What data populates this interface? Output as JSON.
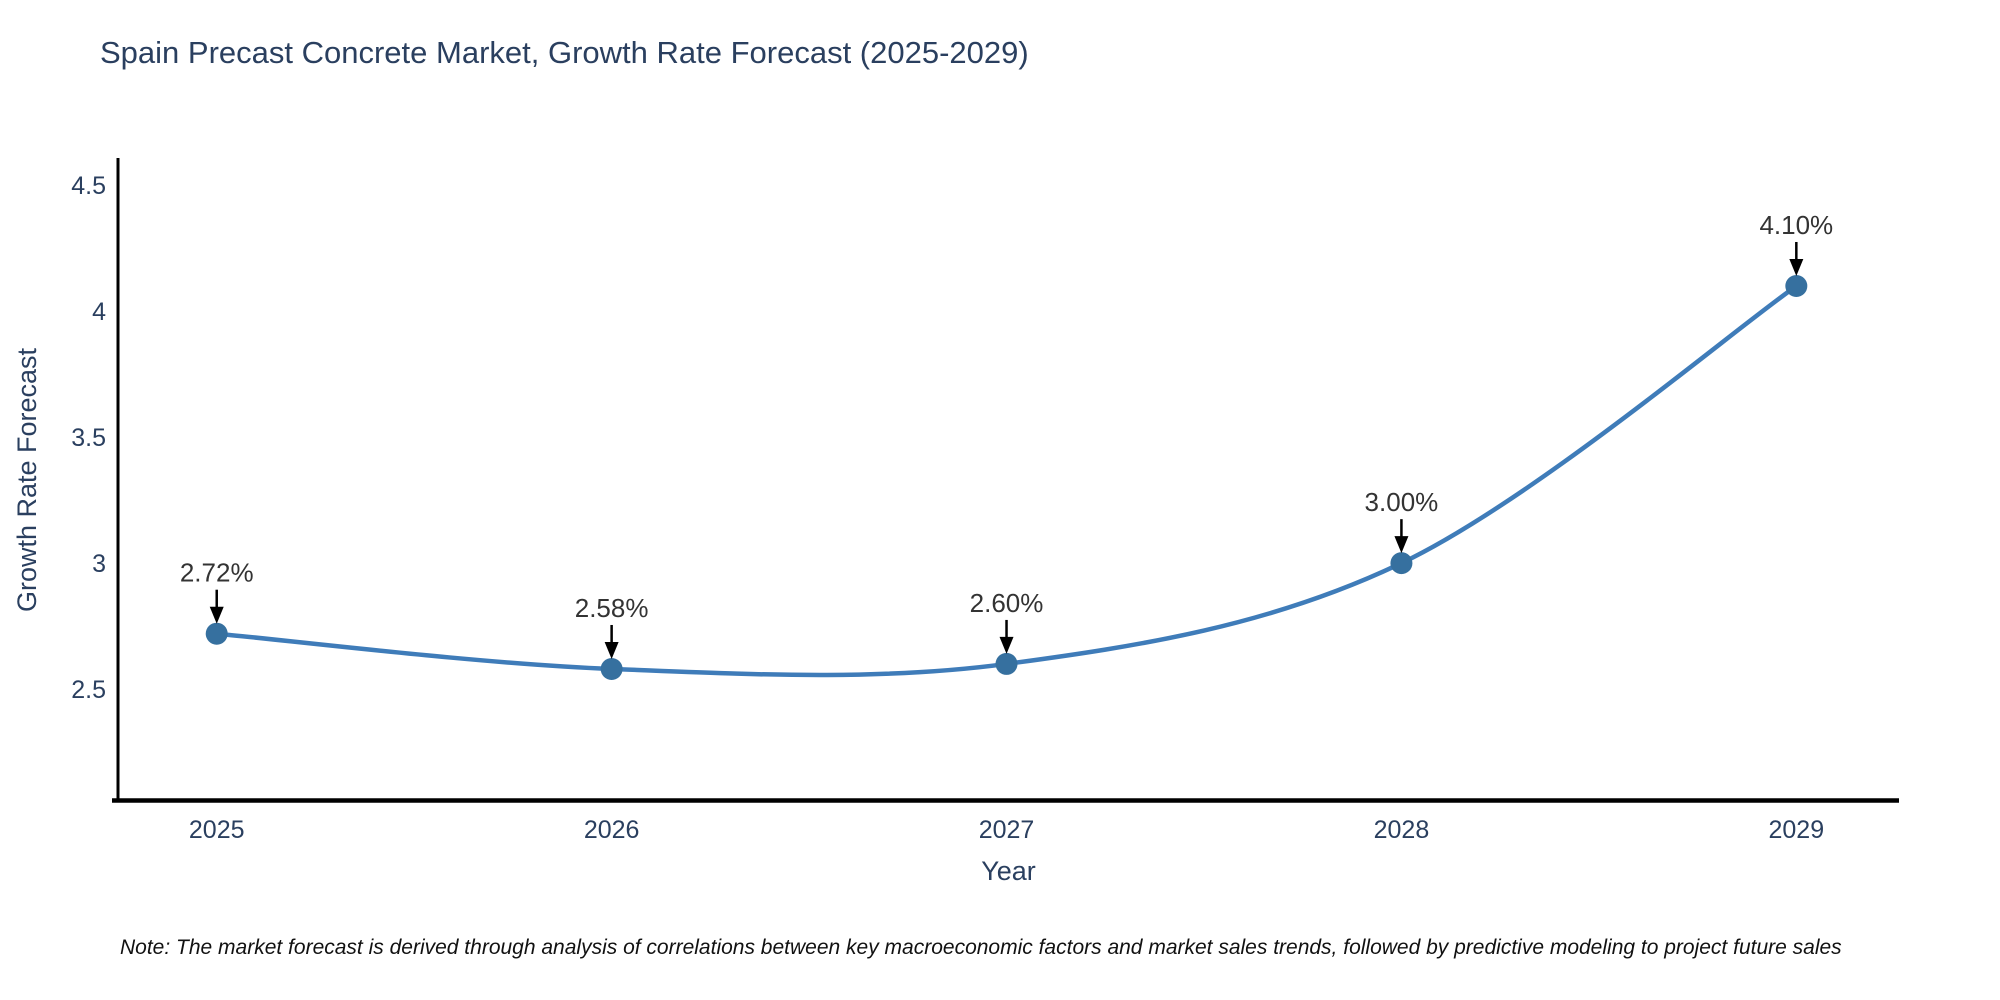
{
  "chart_data": {
    "type": "line",
    "title": "Spain Precast Concrete Market, Growth Rate Forecast (2025-2029)",
    "xlabel": "Year",
    "ylabel": "Growth Rate Forecast",
    "x": [
      2025,
      2026,
      2027,
      2028,
      2029
    ],
    "xtick_labels": [
      "2025",
      "2026",
      "2027",
      "2028",
      "2029"
    ],
    "series": [
      {
        "name": "Growth Rate Forecast",
        "values": [
          2.72,
          2.58,
          2.6,
          3.0,
          4.1
        ]
      }
    ],
    "point_labels": [
      "2.72%",
      "2.58%",
      "2.60%",
      "3.00%",
      "4.10%"
    ],
    "yticks": [
      2.5,
      3,
      3.5,
      4,
      4.5
    ],
    "ytick_labels": [
      "2.5",
      "3",
      "3.5",
      "4",
      "4.5"
    ],
    "xlim": [
      2024.75,
      2029.26
    ],
    "ylim": [
      2.06,
      4.6
    ],
    "grid": false,
    "legend": "none",
    "line_color": "#3f7cb9",
    "marker_color": "#36709f",
    "axis_color": "#000000",
    "text_color": "#2a3f5f",
    "annotation_color": "#333333",
    "arrow_color": "#000000",
    "note": "Note: The market forecast is derived through analysis of correlations between key macroeconomic factors and market sales trends, followed by predictive modeling to project future sales"
  }
}
